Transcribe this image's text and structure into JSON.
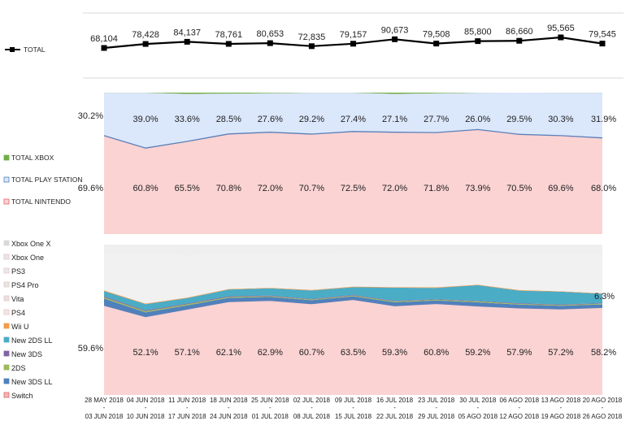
{
  "chart_data": [
    {
      "type": "line",
      "title": "",
      "categories": [
        "28 MAY 2018 - 03 JUN 2018",
        "04 JUN 2018 - 10 JUN 2018",
        "11 JUN 2018 - 17 JUN 2018",
        "18 JUN 2018 - 24 JUN 2018",
        "25 JUN 2018 - 01 JUL 2018",
        "02 JUL 2018 - 08 JUL 2018",
        "09 JUL 2018 - 15 JUL 2018",
        "16 JUL 2018 - 22 JUL 2018",
        "23 JUL 2018 - 29 JUL 2018",
        "30 JUL 2018 - 05 AGO 2018",
        "06 AGO 2018 - 12 AGO 2018",
        "13 AGO 2018 - 19 AGO 2018",
        "20 AGO 2018 - 26 AGO 2018"
      ],
      "series": [
        {
          "name": "TOTAL",
          "color": "#000000",
          "values": [
            68104,
            78428,
            84137,
            78761,
            80653,
            72835,
            79157,
            90673,
            79508,
            85800,
            86660,
            95565,
            79545
          ],
          "labels": [
            "68,104",
            "78,428",
            "84,137",
            "78,761",
            "80,653",
            "72,835",
            "79,157",
            "90,673",
            "79,508",
            "85,800",
            "86,660",
            "95,565",
            "79,545"
          ]
        }
      ],
      "ylim": [
        0,
        100000
      ],
      "legend_position": "left",
      "grid": true
    },
    {
      "type": "area",
      "stacked": "percent",
      "title": "",
      "series": [
        {
          "name": "TOTAL XBOX",
          "color": "#70ad47",
          "values": [
            0.2,
            0.2,
            0.9,
            0.7,
            0.4,
            0.1,
            0.1,
            0.9,
            0.5,
            0.1,
            0.0,
            0.1,
            0.1
          ]
        },
        {
          "name": "TOTAL PLAY STATION",
          "color": "#4f81bd",
          "values": [
            30.2,
            39.0,
            33.6,
            28.5,
            27.6,
            29.2,
            27.4,
            27.1,
            27.7,
            26.0,
            29.5,
            30.3,
            31.9
          ],
          "labels": [
            "30.2%",
            "39.0%",
            "33.6%",
            "28.5%",
            "27.6%",
            "29.2%",
            "27.4%",
            "27.1%",
            "27.7%",
            "26.0%",
            "29.5%",
            "30.3%",
            "31.9%"
          ]
        },
        {
          "name": "TOTAL NINTENDO",
          "color": "#f4b6b6",
          "values": [
            69.6,
            60.8,
            65.5,
            70.8,
            72.0,
            70.7,
            72.5,
            72.0,
            71.8,
            73.9,
            70.5,
            69.6,
            68.0
          ],
          "labels": [
            "69.6%",
            "60.8%",
            "65.5%",
            "70.8%",
            "72.0%",
            "70.7%",
            "72.5%",
            "72.0%",
            "71.8%",
            "73.9%",
            "70.5%",
            "69.6%",
            "68.0%"
          ]
        }
      ],
      "ylim": [
        0,
        100
      ],
      "legend_position": "left"
    },
    {
      "type": "area",
      "stacked": "percent",
      "title": "",
      "legend": [
        {
          "name": "Xbox One X",
          "color": "#d9d9d9"
        },
        {
          "name": "Xbox One",
          "color": "#e6e6e6"
        },
        {
          "name": "PS3",
          "color": "#e9e9e9"
        },
        {
          "name": "PS4 Pro",
          "color": "#e5e5e5"
        },
        {
          "name": "Vita",
          "color": "#e9e0e0"
        },
        {
          "name": "PS4",
          "color": "#f3e5e5"
        },
        {
          "name": "Wii U",
          "color": "#f39c4a"
        },
        {
          "name": "New 2DS LL",
          "color": "#4bacc6"
        },
        {
          "name": "New 3DS",
          "color": "#8064a2"
        },
        {
          "name": "2DS",
          "color": "#9bbb59"
        },
        {
          "name": "New 3DS LL",
          "color": "#4f81bd"
        },
        {
          "name": "Switch",
          "color": "#f4b6b6"
        }
      ],
      "series": [
        {
          "name": "Switch",
          "color": "#f4b6b6",
          "values": [
            59.6,
            52.1,
            57.1,
            62.1,
            62.9,
            60.7,
            63.5,
            59.3,
            60.8,
            59.2,
            57.9,
            57.2,
            58.2
          ],
          "labels": [
            "59.6%",
            "52.1%",
            "57.1%",
            "62.1%",
            "62.9%",
            "60.7%",
            "63.5%",
            "59.3%",
            "60.8%",
            "59.2%",
            "57.9%",
            "57.2%",
            "58.2%"
          ]
        },
        {
          "name": "New 3DS LL",
          "color": "#4f81bd",
          "values": [
            4.5,
            2.8,
            2.5,
            2.5,
            2.3,
            2.3,
            2.1,
            2.3,
            2.0,
            2.4,
            2.2,
            2.1,
            2.0
          ]
        },
        {
          "name": "2DS",
          "color": "#9bbb59",
          "values": [
            0.9,
            0.8,
            0.7,
            0.6,
            0.5,
            0.5,
            0.5,
            0.6,
            0.5,
            0.6,
            0.5,
            0.5,
            0.5
          ]
        },
        {
          "name": "New 3DS",
          "color": "#8064a2",
          "values": [
            0.6,
            0.5,
            0.5,
            0.5,
            0.4,
            0.4,
            0.4,
            0.4,
            0.4,
            0.4,
            0.4,
            0.4,
            0.3
          ]
        },
        {
          "name": "New 2DS LL",
          "color": "#4bacc6",
          "values": [
            3.5,
            4.2,
            3.6,
            4.4,
            4.8,
            5.6,
            5.2,
            8.8,
            7.5,
            10.4,
            8.4,
            8.5,
            6.3
          ],
          "labels": [
            "",
            "",
            "",
            "",
            "",
            "",
            "",
            "",
            "",
            "",
            "",
            "",
            "6.3%"
          ]
        },
        {
          "name": "Wii U",
          "color": "#f39c4a",
          "values": [
            0.5,
            0.4,
            0.4,
            0.4,
            0.4,
            0.4,
            0.4,
            0.4,
            0.4,
            0.4,
            0.4,
            0.3,
            0.3
          ]
        },
        {
          "name": "PS4",
          "color": "#f3e5e5",
          "values": [
            25.0,
            33.0,
            28.0,
            23.5,
            23.0,
            24.5,
            23.0,
            23.0,
            23.5,
            21.5,
            24.5,
            25.5,
            27.0
          ]
        },
        {
          "name": "Vita",
          "color": "#e9e0e0",
          "values": [
            0.3,
            0.3,
            0.3,
            0.3,
            0.3,
            0.3,
            0.3,
            0.3,
            0.3,
            0.3,
            0.3,
            0.3,
            0.3
          ]
        },
        {
          "name": "PS4 Pro",
          "color": "#e5e5e5",
          "values": [
            3.5,
            4.0,
            4.0,
            3.5,
            3.3,
            3.7,
            3.4,
            3.5,
            3.5,
            3.5,
            3.9,
            4.0,
            3.9
          ]
        },
        {
          "name": "PS3",
          "color": "#e9e9e9",
          "values": [
            1.2,
            1.5,
            1.4,
            1.2,
            1.0,
            1.2,
            1.0,
            0.9,
            1.0,
            0.9,
            1.2,
            1.1,
            1.0
          ]
        },
        {
          "name": "Xbox One",
          "color": "#e6e6e6",
          "values": [
            0.2,
            0.2,
            0.8,
            0.6,
            0.4,
            0.1,
            0.1,
            0.8,
            0.4,
            0.1,
            0.0,
            0.1,
            0.1
          ]
        },
        {
          "name": "Xbox One X",
          "color": "#d9d9d9",
          "values": [
            0.2,
            0.2,
            0.8,
            0.4,
            0.3,
            0.3,
            0.1,
            0.1,
            0.1,
            0.3,
            0.3,
            0.0,
            0.1
          ]
        }
      ],
      "ylim": [
        0,
        100
      ],
      "legend_position": "left"
    }
  ]
}
